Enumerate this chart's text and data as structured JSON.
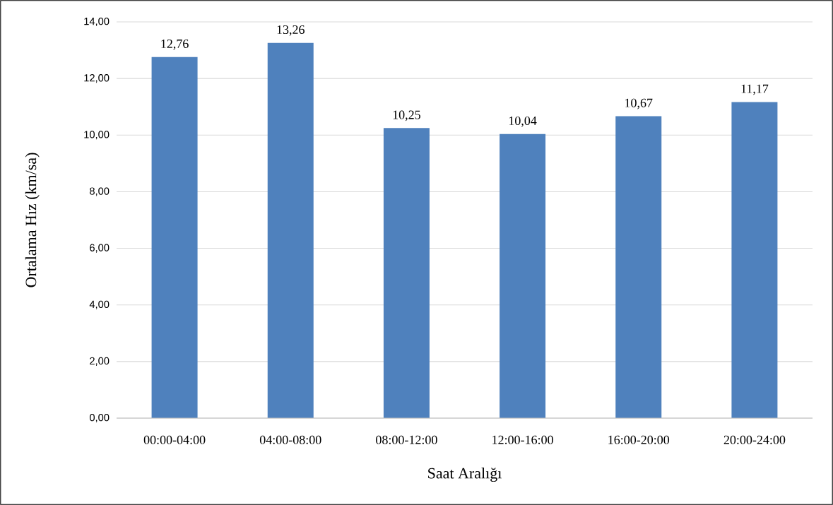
{
  "chart_data": {
    "type": "bar",
    "xlabel": "Saat Aralığı",
    "ylabel": "Ortalama Hız (km/sa)",
    "categories": [
      "00:00-04:00",
      "04:00-08:00",
      "08:00-12:00",
      "12:00-16:00",
      "16:00-20:00",
      "20:00-24:00"
    ],
    "values": [
      12.76,
      13.26,
      10.25,
      10.04,
      10.67,
      11.17
    ],
    "value_labels": [
      "12,76",
      "13,26",
      "10,25",
      "10,04",
      "10,67",
      "11,17"
    ],
    "color": "#4f81bd",
    "ylim": [
      0,
      14
    ],
    "yticks": [
      {
        "value": 0,
        "label": "0,00"
      },
      {
        "value": 2,
        "label": "2,00"
      },
      {
        "value": 4,
        "label": "4,00"
      },
      {
        "value": 6,
        "label": "6,00"
      },
      {
        "value": 8,
        "label": "8,00"
      },
      {
        "value": 10,
        "label": "10,00"
      },
      {
        "value": 12,
        "label": "12,00"
      },
      {
        "value": 14,
        "label": "14,00"
      }
    ],
    "grid": "y"
  }
}
